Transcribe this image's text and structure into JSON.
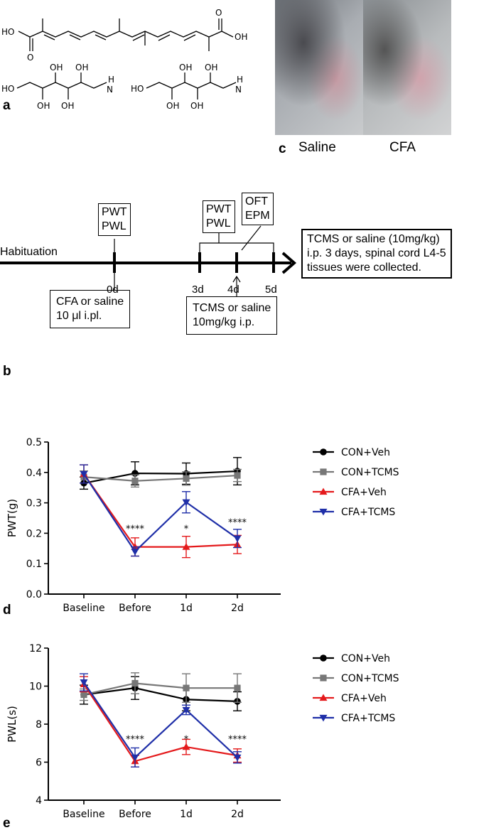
{
  "panel_a": {
    "label": "a",
    "chem": {
      "ho_top_left": "HO",
      "o_top_left": "O",
      "oh_top_right": "OH",
      "o_top_right": "O",
      "ho": "HO",
      "oh": "OH",
      "nh": "H",
      "n": "N"
    }
  },
  "panel_c": {
    "label": "c",
    "caption_left": "Saline",
    "caption_right": "CFA"
  },
  "panel_b": {
    "label": "b",
    "habituation": "Habituation",
    "box_pwt_1": [
      "PWT",
      "PWL"
    ],
    "box_pwt_2": [
      "PWT",
      "PWL"
    ],
    "box_oft": [
      "OFT",
      "EPM"
    ],
    "box_cfa": [
      "CFA or saline",
      "10 μl i.pl."
    ],
    "box_tcms": [
      "TCMS or saline",
      "10mg/kg  i.p."
    ],
    "box_right": [
      "TCMS or saline (10mg/kg)",
      "i.p. 3 days, spinal cord L4-5",
      "tissues were collected."
    ],
    "ticks": [
      "0d",
      "3d",
      "4d",
      "5d"
    ]
  },
  "chart_data": [
    {
      "panel": "d",
      "type": "line",
      "ylabel": "PWT(g)",
      "xlabel": "",
      "categories": [
        "Baseline",
        "Before",
        "1d",
        "2d"
      ],
      "ylim": [
        0.0,
        0.5
      ],
      "yticks": [
        "0.0",
        "0.1",
        "0.2",
        "0.3",
        "0.4",
        "0.5"
      ],
      "ytick_values": [
        0.0,
        0.1,
        0.2,
        0.3,
        0.4,
        0.5
      ],
      "legend_position": "right",
      "series": [
        {
          "name": "CON+Veh",
          "color": "#000000",
          "marker": "circle",
          "values": [
            0.365,
            0.397,
            0.396,
            0.404
          ],
          "errors": [
            0.02,
            0.038,
            0.035,
            0.045
          ]
        },
        {
          "name": "CON+TCMS",
          "color": "#777777",
          "marker": "square",
          "values": [
            0.385,
            0.372,
            0.38,
            0.39
          ],
          "errors": [
            0.02,
            0.02,
            0.022,
            0.02
          ]
        },
        {
          "name": "CFA+Veh",
          "color": "#e41a1c",
          "marker": "triangle-up",
          "values": [
            0.395,
            0.155,
            0.155,
            0.163
          ],
          "errors": [
            0.03,
            0.03,
            0.035,
            0.03
          ]
        },
        {
          "name": "CFA+TCMS",
          "color": "#1f2fa8",
          "marker": "triangle-down",
          "values": [
            0.395,
            0.14,
            0.302,
            0.183
          ],
          "errors": [
            0.03,
            0.015,
            0.035,
            0.03
          ]
        }
      ],
      "annotations": [
        {
          "category": "Before",
          "text": "****",
          "y": 0.205
        },
        {
          "category": "1d",
          "text": "*",
          "y": 0.205
        },
        {
          "category": "2d",
          "text": "****",
          "y": 0.225
        }
      ]
    },
    {
      "panel": "e",
      "type": "line",
      "ylabel": "PWL(s)",
      "xlabel": "",
      "categories": [
        "Baseline",
        "Before",
        "1d",
        "2d"
      ],
      "ylim": [
        4,
        12
      ],
      "yticks": [
        "4",
        "6",
        "8",
        "10",
        "12"
      ],
      "ytick_values": [
        4,
        6,
        8,
        10,
        12
      ],
      "legend_position": "right",
      "series": [
        {
          "name": "CON+Veh",
          "color": "#000000",
          "marker": "circle",
          "values": [
            9.55,
            9.9,
            9.3,
            9.2
          ],
          "errors": [
            0.5,
            0.6,
            0.6,
            0.5
          ]
        },
        {
          "name": "CON+TCMS",
          "color": "#777777",
          "marker": "square",
          "values": [
            9.55,
            10.15,
            9.9,
            9.9
          ],
          "errors": [
            0.3,
            0.55,
            0.75,
            0.75
          ]
        },
        {
          "name": "CFA+Veh",
          "color": "#e41a1c",
          "marker": "triangle-up",
          "values": [
            10.1,
            6.05,
            6.8,
            6.35
          ],
          "errors": [
            0.4,
            0.3,
            0.4,
            0.35
          ]
        },
        {
          "name": "CFA+TCMS",
          "color": "#1f2fa8",
          "marker": "triangle-down",
          "values": [
            10.2,
            6.25,
            8.75,
            6.25
          ],
          "errors": [
            0.45,
            0.5,
            0.25,
            0.3
          ]
        }
      ],
      "annotations": [
        {
          "category": "Before",
          "text": "****",
          "y": 7.05
        },
        {
          "category": "1d",
          "text": "*",
          "y": 7.05
        },
        {
          "category": "2d",
          "text": "****",
          "y": 7.05
        }
      ]
    }
  ]
}
